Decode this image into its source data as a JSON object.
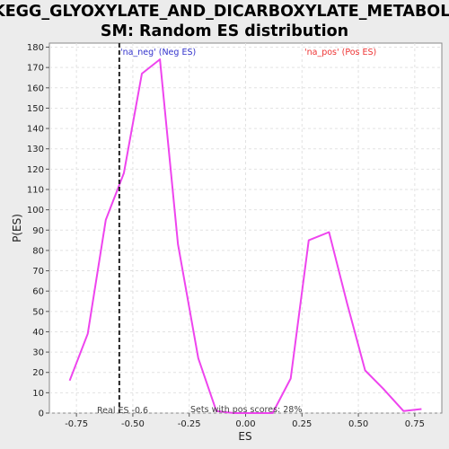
{
  "chart_data": {
    "type": "line",
    "title_line1": "KEGG_GLYOXYLATE_AND_DICARBOXYLATE_METABOLI",
    "title_line2": "SM: Random ES distribution",
    "xlabel": "ES",
    "ylabel": "P(ES)",
    "xlim": [
      -0.87,
      0.87
    ],
    "ylim": [
      0,
      182
    ],
    "x_ticks": [
      "-0.75",
      "-0.50",
      "-0.25",
      "0.00",
      "0.25",
      "0.50",
      "0.75"
    ],
    "x_tick_values": [
      -0.75,
      -0.5,
      -0.25,
      0,
      0.25,
      0.5,
      0.75
    ],
    "y_ticks": [
      "0",
      "10",
      "20",
      "30",
      "40",
      "50",
      "60",
      "70",
      "80",
      "90",
      "100",
      "110",
      "120",
      "130",
      "140",
      "150",
      "160",
      "170",
      "180"
    ],
    "y_tick_values": [
      0,
      10,
      20,
      30,
      40,
      50,
      60,
      70,
      80,
      90,
      100,
      110,
      120,
      130,
      140,
      150,
      160,
      170,
      180
    ],
    "grid": true,
    "series": [
      {
        "color": "#ee44ee",
        "x": [
          -0.78,
          -0.7,
          -0.62,
          -0.54,
          -0.46,
          -0.38,
          -0.3,
          -0.21,
          -0.13,
          -0.05,
          0.04,
          0.12,
          0.2,
          0.28,
          0.37,
          0.45,
          0.53,
          0.61,
          0.7,
          0.78
        ],
        "y": [
          16,
          39,
          95,
          118,
          167,
          174,
          83,
          27,
          1,
          0,
          0,
          0,
          17,
          85,
          89,
          54,
          21,
          12,
          1,
          2
        ]
      }
    ],
    "real_es": -0.56,
    "annotations": {
      "neg_label": "'na_neg' (Neg ES)",
      "pos_label": "'na_pos' (Pos ES)",
      "real_es_label": "Real ES -0.6",
      "pos_scores_label": "Sets with pos scores: 28%"
    },
    "colors": {
      "neg": "#3333cc",
      "pos": "#ee3333",
      "line": "#ee44ee",
      "plot_bg": "#ffffff",
      "page_bg": "#ececec"
    }
  }
}
